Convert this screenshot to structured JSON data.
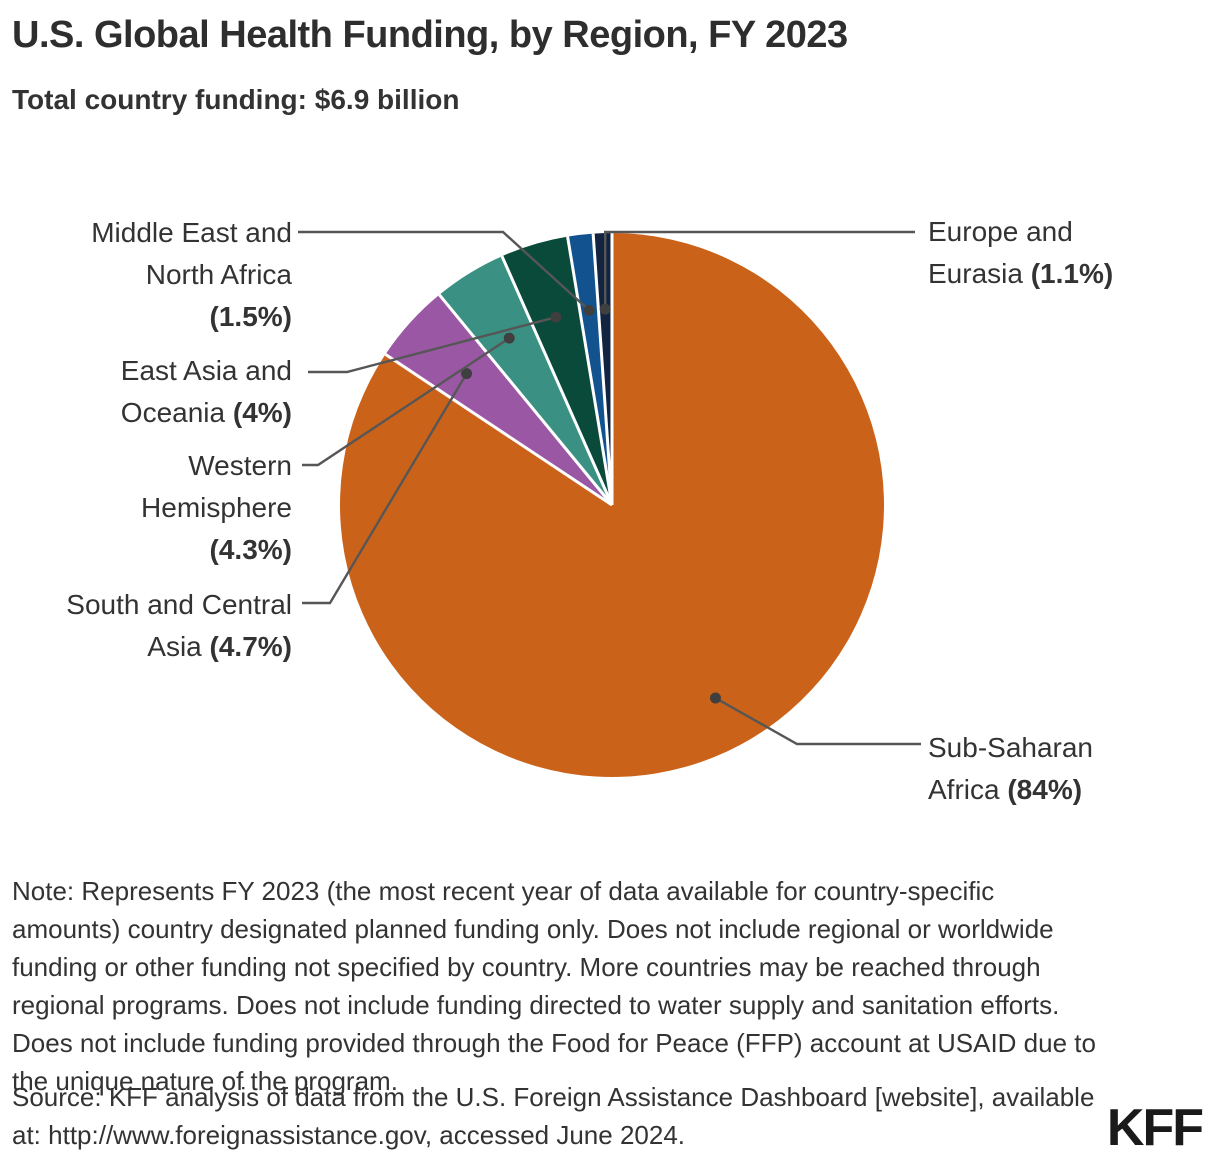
{
  "chart_data": {
    "type": "pie",
    "title": "U.S. Global Health Funding, by Region, FY 2023",
    "subtitle": "Total country funding: $6.9 billion",
    "total_country_funding": "$6.9 billion",
    "unit": "percent of total country funding",
    "start_position": "12-o-clock",
    "direction": "clockwise",
    "legend": "none",
    "slices": [
      {
        "id": "sub-saharan-africa",
        "name": "Sub-Saharan Africa",
        "value": 84,
        "display": "84%",
        "color": "#CB6219",
        "label_lines": [
          "Sub-Saharan",
          "Africa (84%)"
        ],
        "label_side": "right"
      },
      {
        "id": "south-and-central-asia",
        "name": "South and Central Asia",
        "value": 4.7,
        "display": "4.7%",
        "color": "#9A58A4",
        "label_lines": [
          "South and Central",
          "Asia (4.7%)"
        ],
        "label_side": "left"
      },
      {
        "id": "western-hemisphere",
        "name": "Western Hemisphere",
        "value": 4.3,
        "display": "4.3%",
        "color": "#3A9183",
        "label_lines": [
          "Western",
          "Hemisphere",
          "(4.3%)"
        ],
        "label_side": "left"
      },
      {
        "id": "east-asia-and-oceania",
        "name": "East Asia and Oceania",
        "value": 4,
        "display": "4%",
        "color": "#094A3A",
        "label_lines": [
          "East Asia and",
          "Oceania (4%)"
        ],
        "label_side": "left"
      },
      {
        "id": "middle-east-and-north-africa",
        "name": "Middle East and North Africa",
        "value": 1.5,
        "display": "1.5%",
        "color": "#12538F",
        "label_lines": [
          "Middle East and",
          "North Africa",
          "(1.5%)"
        ],
        "label_side": "left"
      },
      {
        "id": "europe-and-eurasia",
        "name": "Europe and Eurasia",
        "value": 1.1,
        "display": "1.1%",
        "color": "#132440",
        "label_lines": [
          "Europe and",
          "Eurasia (1.1%)"
        ],
        "label_side": "right"
      }
    ]
  },
  "footnotes": {
    "note": "Note: Represents FY 2023 (the most recent year of data available for country-specific\namounts) country designated planned funding only. Does not include regional or worldwide\nfunding or other funding not specified by country. More countries may be reached through\nregional programs. Does not include funding directed to water supply and sanitation efforts.\nDoes not include funding provided through the Food for Peace (FFP) account at USAID due to\nthe unique nature of the program.",
    "source": "Source: KFF analysis of data from the U.S. Foreign Assistance Dashboard [website], available\nat: http://www.foreignassistance.gov, accessed June 2024."
  },
  "branding": {
    "logo_text": "KFF"
  },
  "colors": {
    "leader_line": "#565656",
    "leader_dot": "#3F3F3F",
    "slice_separator": "#FFFFFF",
    "text": "#333333"
  }
}
